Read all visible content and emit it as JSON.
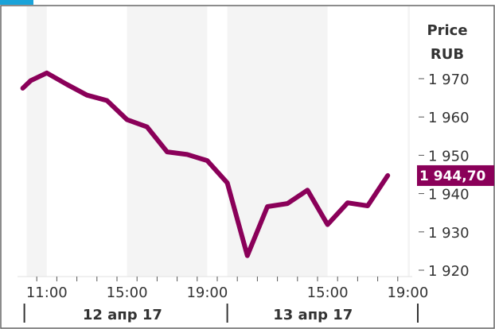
{
  "chart_data": {
    "type": "line",
    "y_axis_title": [
      "Price",
      "RUB"
    ],
    "ylim": [
      1917,
      1976
    ],
    "y_ticks": [
      {
        "value": 1970,
        "label": "1 970"
      },
      {
        "value": 1960,
        "label": "1 960"
      },
      {
        "value": 1950,
        "label": "1 950"
      },
      {
        "value": 1940,
        "label": "1 940"
      },
      {
        "value": 1930,
        "label": "1 930"
      },
      {
        "value": 1920,
        "label": "1 920"
      }
    ],
    "x_time_ticks": [
      {
        "slot": 1,
        "label": "11:00"
      },
      {
        "slot": 5,
        "label": "15:00"
      },
      {
        "slot": 9,
        "label": "19:00"
      },
      {
        "slot": 15,
        "label": "15:00"
      },
      {
        "slot": 19,
        "label": "19:00"
      }
    ],
    "x_date_labels": [
      {
        "center": 5.25,
        "label": "12 апр 17"
      },
      {
        "center": 14.75,
        "label": "13 апр 17"
      }
    ],
    "date_separators": [
      0,
      10,
      19.5
    ],
    "x_range": [
      -0.2,
      19.4
    ],
    "shaded_bands": [
      [
        0,
        1
      ],
      [
        5,
        9
      ],
      [
        10,
        15
      ],
      [
        19,
        20
      ]
    ],
    "series": [
      {
        "color": "#8a0059",
        "values": [
          [
            -0.2,
            1967.5
          ],
          [
            0.2,
            1969.5
          ],
          [
            1.0,
            1971.5
          ],
          [
            2.0,
            1968.5
          ],
          [
            3.0,
            1965.7
          ],
          [
            4.0,
            1964.3
          ],
          [
            5.0,
            1959.3
          ],
          [
            6.0,
            1957.4
          ],
          [
            7.0,
            1950.9
          ],
          [
            8.0,
            1950.2
          ],
          [
            9.0,
            1948.6
          ],
          [
            10.0,
            1942.8
          ],
          [
            11.0,
            1923.8
          ],
          [
            12.0,
            1936.6
          ],
          [
            13.0,
            1937.4
          ],
          [
            14.0,
            1940.9
          ],
          [
            15.0,
            1931.9
          ],
          [
            16.0,
            1937.6
          ],
          [
            17.0,
            1936.8
          ],
          [
            18.0,
            1944.7
          ]
        ]
      }
    ],
    "last_value": {
      "value": 1944.7,
      "label": "1 944,70",
      "color": "#8a0059"
    },
    "grid": false
  }
}
